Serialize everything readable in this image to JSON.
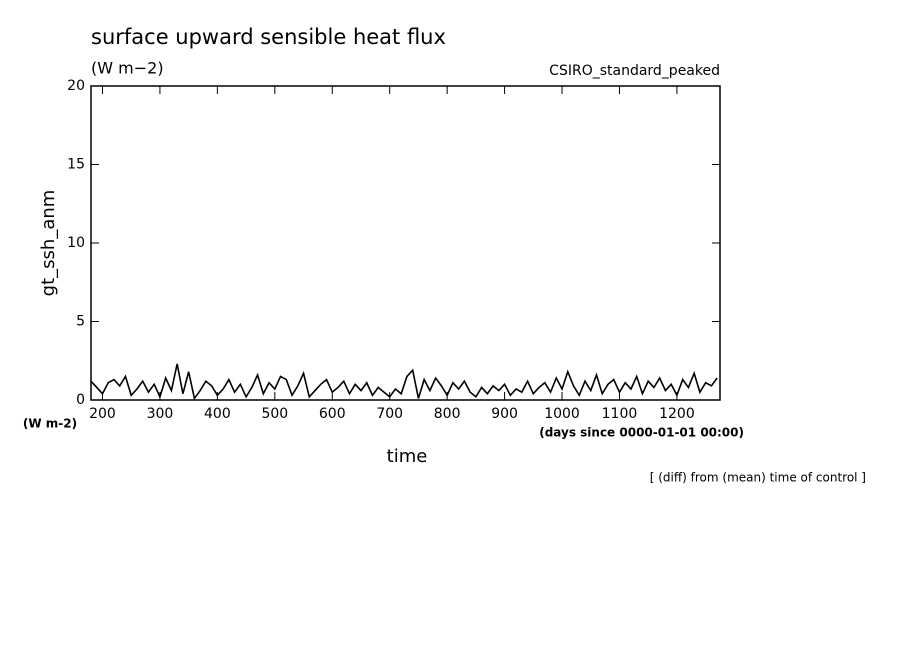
{
  "chart_data": {
    "type": "line",
    "title": "surface upward sensible heat flux",
    "subtitle": "(W m−2)",
    "annotation": "CSIRO_standard_peaked",
    "y_label": "gt_ssh_anm",
    "y_unit": "(W m-2)",
    "x_label": "time",
    "x_unit": "(days since 0000-01-01 00:00)",
    "note": "[ (diff) from (mean) time of control ]",
    "xlim": [
      180,
      1275
    ],
    "ylim": [
      0,
      20
    ],
    "xticks": [
      200,
      300,
      400,
      500,
      600,
      700,
      800,
      900,
      1000,
      1100,
      1200
    ],
    "yticks": [
      0,
      5,
      10,
      15,
      20
    ],
    "color": "#000000",
    "x": [
      180,
      190,
      200,
      210,
      220,
      230,
      240,
      250,
      260,
      270,
      280,
      290,
      300,
      310,
      320,
      330,
      340,
      350,
      360,
      370,
      380,
      390,
      400,
      410,
      420,
      430,
      440,
      450,
      460,
      470,
      480,
      490,
      500,
      510,
      520,
      530,
      540,
      550,
      560,
      570,
      580,
      590,
      600,
      610,
      620,
      630,
      640,
      650,
      660,
      670,
      680,
      690,
      700,
      710,
      720,
      730,
      740,
      750,
      760,
      770,
      780,
      790,
      800,
      810,
      820,
      830,
      840,
      850,
      860,
      870,
      880,
      890,
      900,
      910,
      920,
      930,
      940,
      950,
      960,
      970,
      980,
      990,
      1000,
      1010,
      1020,
      1030,
      1040,
      1050,
      1060,
      1070,
      1080,
      1090,
      1100,
      1110,
      1120,
      1130,
      1140,
      1150,
      1160,
      1170,
      1180,
      1190,
      1200,
      1210,
      1220,
      1230,
      1240,
      1250,
      1260,
      1270
    ],
    "values": [
      1.2,
      0.8,
      0.4,
      1.1,
      1.3,
      0.9,
      1.5,
      0.3,
      0.7,
      1.2,
      0.5,
      1.0,
      0.2,
      1.4,
      0.6,
      2.3,
      0.4,
      1.8,
      0.1,
      0.6,
      1.2,
      0.9,
      0.3,
      0.7,
      1.3,
      0.5,
      1.0,
      0.2,
      0.8,
      1.6,
      0.4,
      1.1,
      0.7,
      1.5,
      1.3,
      0.3,
      0.9,
      1.7,
      0.2,
      0.6,
      1.0,
      1.3,
      0.5,
      0.8,
      1.2,
      0.4,
      1.0,
      0.6,
      1.1,
      0.3,
      0.8,
      0.5,
      0.2,
      0.7,
      0.4,
      1.5,
      1.9,
      0.1,
      1.3,
      0.6,
      1.4,
      0.9,
      0.3,
      1.1,
      0.7,
      1.2,
      0.5,
      0.2,
      0.8,
      0.4,
      0.9,
      0.6,
      1.0,
      0.3,
      0.7,
      0.5,
      1.2,
      0.4,
      0.8,
      1.1,
      0.5,
      1.4,
      0.7,
      1.8,
      0.9,
      0.3,
      1.2,
      0.6,
      1.6,
      0.4,
      1.0,
      1.3,
      0.5,
      1.1,
      0.7,
      1.5,
      0.4,
      1.2,
      0.8,
      1.4,
      0.6,
      1.0,
      0.3,
      1.3,
      0.8,
      1.7,
      0.5,
      1.1,
      0.9,
      1.4
    ]
  }
}
